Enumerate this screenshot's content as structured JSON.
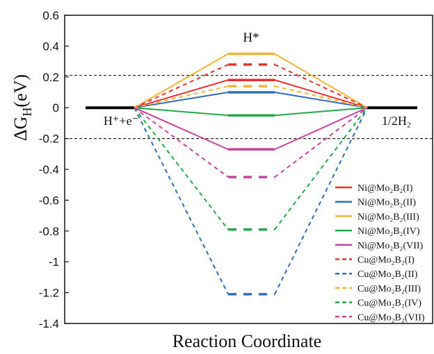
{
  "chart_data": {
    "type": "line",
    "title": "",
    "xlabel": "Reaction Coordinate",
    "ylabel": "ΔG_H(eV)",
    "ylim": [
      -1.4,
      0.6
    ],
    "yticks": [
      "0.6",
      "0.4",
      "0.2",
      "0",
      "-0.2",
      "-0.4",
      "-0.6",
      "-0.8",
      "-1",
      "-1.2",
      "-1.4"
    ],
    "reference_lines": [
      0.21,
      -0.2
    ],
    "states": {
      "initial": "H⁺+e⁻",
      "intermediate": "H*",
      "final": "1/2H₂"
    },
    "baseline_value": 0,
    "legend_placement": "bottom-right",
    "series": [
      {
        "name": "Ni@Mo₂B₂(I)",
        "value": 0.18,
        "color": "#e8312f",
        "dash": "solid"
      },
      {
        "name": "Ni@Mo₂B₂(II)",
        "value": 0.1,
        "color": "#2f6db5",
        "dash": "solid"
      },
      {
        "name": "Ni@Mo₂B₂(III)",
        "value": 0.35,
        "color": "#f5b335",
        "dash": "solid"
      },
      {
        "name": "Ni@Mo₂B₂(IV)",
        "value": -0.05,
        "color": "#22a84a",
        "dash": "solid"
      },
      {
        "name": "Ni@Mo₂B₂(VII)",
        "value": -0.27,
        "color": "#c8439c",
        "dash": "solid"
      },
      {
        "name": "Cu@Mo₂B₂(I)",
        "value": 0.28,
        "color": "#e8312f",
        "dash": "dashed"
      },
      {
        "name": "Cu@Mo₂B₂(II)",
        "value": -1.21,
        "color": "#2f6db5",
        "dash": "dashed"
      },
      {
        "name": "Cu@Mo₂B₂(III)",
        "value": 0.14,
        "color": "#f5b335",
        "dash": "dashed"
      },
      {
        "name": "Cu@Mo₂B₂(IV)",
        "value": -0.79,
        "color": "#22a84a",
        "dash": "dashed"
      },
      {
        "name": "Cu@Mo₂B₂(VII)",
        "value": -0.45,
        "color": "#c8439c",
        "dash": "dashed"
      }
    ]
  }
}
